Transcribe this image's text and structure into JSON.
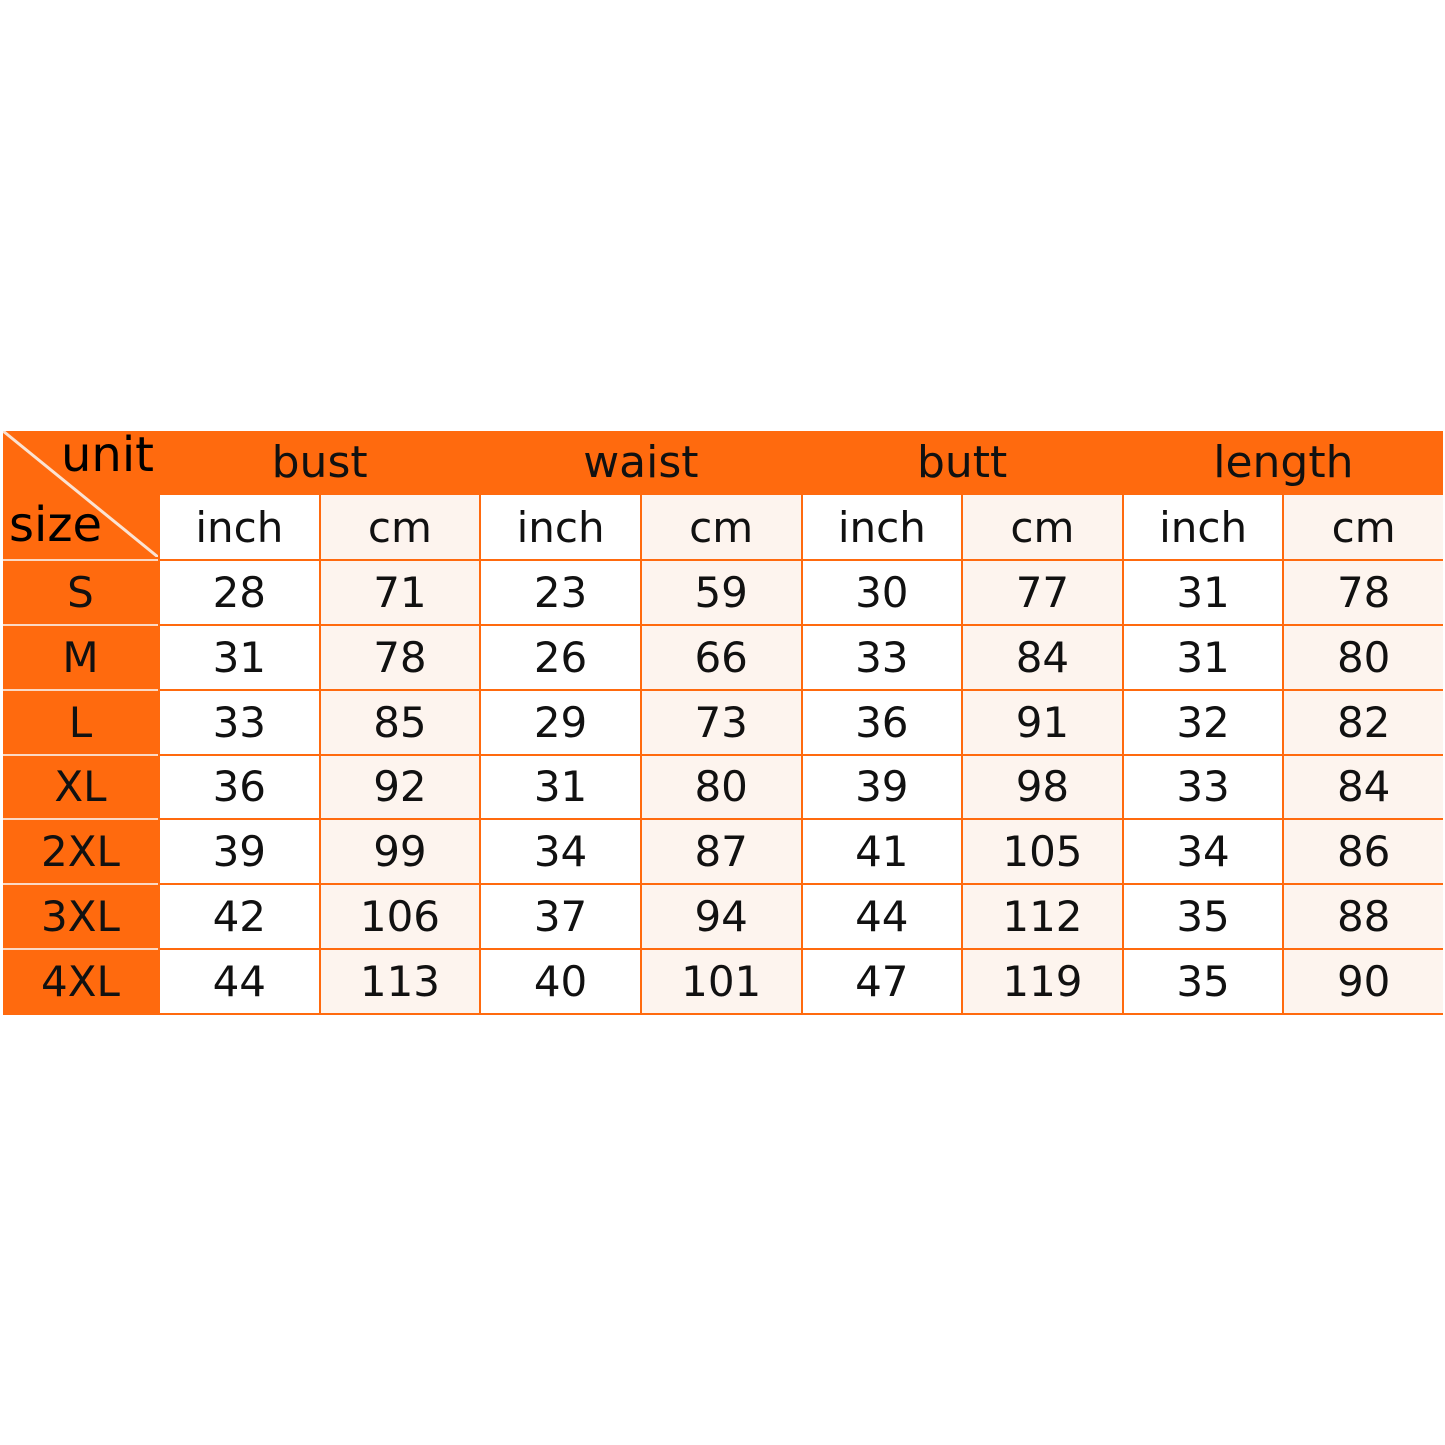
{
  "corner": {
    "unit_label": "unit",
    "size_label": "size"
  },
  "groups": [
    "bust",
    "waist",
    "butt",
    "length"
  ],
  "units": [
    "inch",
    "cm"
  ],
  "colors": {
    "header": "#FF6A0E",
    "border": "#FF6A0E",
    "cell": "#FFFFFF",
    "cell_alt": "#FDF4EE"
  },
  "rows": [
    {
      "size": "S",
      "values": [
        "28",
        "71",
        "23",
        "59",
        "30",
        "77",
        "31",
        "78"
      ]
    },
    {
      "size": "M",
      "values": [
        "31",
        "78",
        "26",
        "66",
        "33",
        "84",
        "31",
        "80"
      ]
    },
    {
      "size": "L",
      "values": [
        "33",
        "85",
        "29",
        "73",
        "36",
        "91",
        "32",
        "82"
      ]
    },
    {
      "size": "XL",
      "values": [
        "36",
        "92",
        "31",
        "80",
        "39",
        "98",
        "33",
        "84"
      ]
    },
    {
      "size": "2XL",
      "values": [
        "39",
        "99",
        "34",
        "87",
        "41",
        "105",
        "34",
        "86"
      ]
    },
    {
      "size": "3XL",
      "values": [
        "42",
        "106",
        "37",
        "94",
        "44",
        "112",
        "35",
        "88"
      ]
    },
    {
      "size": "4XL",
      "values": [
        "44",
        "113",
        "40",
        "101",
        "47",
        "119",
        "35",
        "90"
      ]
    }
  ]
}
